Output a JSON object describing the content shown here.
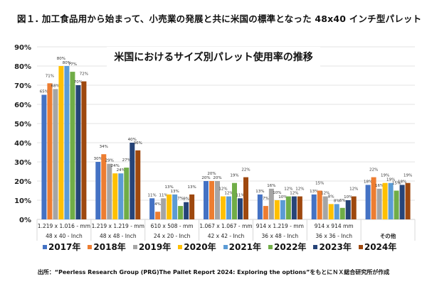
{
  "figure_title": "図１. 加工食品用から始まって、小売業の発展と共に米国の標準となった 48x40 インチ型パレット",
  "source_note": "出所：“Peerless Research Group (PRG)The Pallet Report 2024: Exploring the options”をもとにＮＸ総合研究所が作成",
  "chart_data": {
    "type": "bar",
    "title": "米国におけるサイズ別パレット使用率の推移",
    "xlabel": "",
    "ylabel": "",
    "ylim": [
      0,
      90
    ],
    "yticks": [
      "0%",
      "10%",
      "20%",
      "30%",
      "40%",
      "50%",
      "60%",
      "70%",
      "80%",
      "90%"
    ],
    "grid": true,
    "legend_position": "bottom",
    "categories": [
      {
        "line1": "1.219 x 1.016 - mm",
        "line2": "48 x 40 - Inch"
      },
      {
        "line1": "1.219 x 1.219 - mm",
        "line2": "48 x 48 - Inch"
      },
      {
        "line1": "610 x 508 - mm",
        "line2": "24 x 20 - Inch"
      },
      {
        "line1": "1.067 x 1.067 - mm",
        "line2": "42 x 42 - Inch"
      },
      {
        "line1": "914 x 1.219 - mm",
        "line2": "36 x 48 - Inch"
      },
      {
        "line1": "914 x 914 mm",
        "line2": "36 x 36 - Inch"
      },
      {
        "line1": "",
        "line2": "その他"
      }
    ],
    "series": [
      {
        "name": "2017年",
        "color": "#4472C4",
        "values": [
          65,
          30,
          11,
          20,
          13,
          13,
          18
        ]
      },
      {
        "name": "2018年",
        "color": "#ED7D31",
        "values": [
          71,
          34,
          4,
          20,
          7,
          15,
          22
        ]
      },
      {
        "name": "2019年",
        "color": "#A5A5A5",
        "values": [
          68,
          29,
          11,
          20,
          16,
          12,
          16
        ]
      },
      {
        "name": "2020年",
        "color": "#FFC000",
        "values": [
          80,
          24,
          13,
          12,
          10,
          8,
          19
        ]
      },
      {
        "name": "2021年",
        "color": "#5B9BD5",
        "values": [
          80,
          24,
          13,
          12,
          10,
          8,
          19
        ]
      },
      {
        "name": "2022年",
        "color": "#70AD47",
        "values": [
          77,
          27,
          7,
          19,
          12,
          6,
          15
        ]
      },
      {
        "name": "2023年",
        "color": "#264478",
        "values": [
          70,
          40,
          9,
          11,
          12,
          10,
          18
        ]
      },
      {
        "name": "2024年",
        "color": "#9E480E",
        "values": [
          72,
          36,
          13,
          22,
          12,
          12,
          19
        ]
      }
    ],
    "value_label_suffix": "%"
  }
}
